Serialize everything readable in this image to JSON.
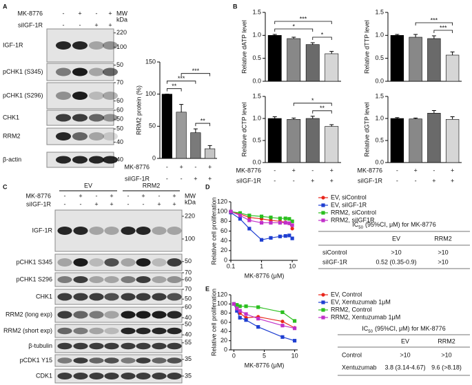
{
  "panel_letters": [
    "A",
    "B",
    "C",
    "D",
    "E"
  ],
  "blot_A": {
    "treatments": [
      {
        "name": "MK-8776",
        "signs": [
          "-",
          "+",
          "-",
          "+"
        ]
      },
      {
        "name": "siIGF-1R",
        "signs": [
          "-",
          "-",
          "+",
          "+"
        ]
      }
    ],
    "mw_label": [
      "MW",
      "kDa"
    ],
    "rows": [
      {
        "label": "IGF-1R",
        "markers": [
          220,
          100
        ]
      },
      {
        "label": "pCHK1 (S345)",
        "markers": [
          50
        ]
      },
      {
        "label": "pCHK1 (S296)",
        "markers": [
          70,
          60
        ]
      },
      {
        "label": "CHK1",
        "markers": [
          60,
          50
        ]
      },
      {
        "label": "RRM2",
        "markers": [
          50,
          40
        ]
      },
      {
        "label": "β-actin",
        "markers": [
          40
        ]
      }
    ]
  },
  "blot_C": {
    "groups": [
      "EV",
      "RRM2"
    ],
    "treatments": [
      {
        "name": "MK-8776",
        "signs": [
          "-",
          "+",
          "-",
          "+",
          "-",
          "+",
          "-",
          "+"
        ]
      },
      {
        "name": "siIGF-1R",
        "signs": [
          "-",
          "-",
          "+",
          "+",
          "-",
          "-",
          "+",
          "+"
        ]
      }
    ],
    "mw_label": [
      "MW",
      "kDa"
    ],
    "rows": [
      {
        "label": "IGF-1R",
        "markers": [
          220,
          100
        ]
      },
      {
        "label": "pCHK1 S345",
        "markers": [
          50
        ]
      },
      {
        "label": "pCHK1 S296",
        "markers": [
          70,
          60
        ]
      },
      {
        "label": "CHK1",
        "markers": [
          70,
          50
        ]
      },
      {
        "label": "RRM2 (long exp)",
        "markers": [
          60,
          40
        ]
      },
      {
        "label": "RRM2 (short exp)",
        "markers": [
          50,
          40
        ]
      },
      {
        "label": "β-tubulin",
        "markers": [
          55
        ]
      },
      {
        "label": "pCDK1 Y15",
        "markers": [
          35
        ]
      },
      {
        "label": "CDK1",
        "markers": [
          35
        ]
      }
    ]
  },
  "chart_data": [
    {
      "type": "bar",
      "ylabel": "RRM2 protein (%)",
      "values": [
        100,
        72,
        40,
        15
      ],
      "errors": [
        0,
        12,
        6,
        5
      ],
      "colors": [
        "#000000",
        "#9a9a9a",
        "#7a7a7a",
        "#c4c4c4"
      ],
      "ylim": [
        0,
        150
      ],
      "yticks": [
        0,
        50,
        100,
        150
      ],
      "significance": [
        {
          "groups": [
            0,
            2
          ],
          "label": "***"
        },
        {
          "groups": [
            0,
            1
          ],
          "label": "**"
        },
        {
          "groups": [
            1,
            3
          ],
          "label": "***"
        },
        {
          "groups": [
            2,
            3
          ],
          "label": "**"
        }
      ],
      "treatments": [
        {
          "name": "MK-8776",
          "signs": [
            "-",
            "+",
            "-",
            "+"
          ]
        },
        {
          "name": "siIGF-1R",
          "signs": [
            "-",
            "-",
            "+",
            "+"
          ]
        }
      ]
    },
    {
      "type": "bar",
      "ylabel": "Relative dATP level",
      "values": [
        1.0,
        0.93,
        0.8,
        0.6
      ],
      "errors": [
        0.02,
        0.03,
        0.04,
        0.05
      ],
      "colors": [
        "#000000",
        "#888888",
        "#6a6a6a",
        "#d6d6d6"
      ],
      "ylim": [
        0,
        1.5
      ],
      "yticks": [
        {
          "value": 0,
          "label": "0.0"
        },
        0.5,
        {
          "value": 1,
          "label": "1.0"
        },
        1.5
      ],
      "significance": [
        {
          "groups": [
            0,
            2
          ],
          "label": "*"
        },
        {
          "groups": [
            0,
            3
          ],
          "label": "***"
        },
        {
          "groups": [
            2,
            3
          ],
          "label": "*"
        }
      ]
    },
    {
      "type": "bar",
      "ylabel": "Relative dTTP level",
      "values": [
        1.0,
        0.96,
        0.93,
        0.57
      ],
      "errors": [
        0.02,
        0.06,
        0.06,
        0.07
      ],
      "colors": [
        "#000000",
        "#888888",
        "#6a6a6a",
        "#d6d6d6"
      ],
      "ylim": [
        0,
        1.5
      ],
      "yticks": [
        {
          "value": 0,
          "label": "0.0"
        },
        0.5,
        {
          "value": 1,
          "label": "1.0"
        },
        1.5
      ],
      "significance": [
        {
          "groups": [
            2,
            3
          ],
          "label": "***"
        },
        {
          "groups": [
            1,
            3
          ],
          "label": "***"
        }
      ]
    },
    {
      "type": "bar",
      "ylabel": "Relative dCTP level",
      "values": [
        1.0,
        0.98,
        1.0,
        0.82
      ],
      "errors": [
        0.04,
        0.03,
        0.05,
        0.04
      ],
      "colors": [
        "#000000",
        "#888888",
        "#6a6a6a",
        "#d6d6d6"
      ],
      "ylim": [
        0,
        1.5
      ],
      "yticks": [
        {
          "value": 0,
          "label": "0.0"
        },
        0.5,
        {
          "value": 1,
          "label": "1.0"
        },
        1.5
      ],
      "significance": [
        {
          "groups": [
            2,
            3
          ],
          "label": "**"
        },
        {
          "groups": [
            1,
            3
          ],
          "label": "*"
        }
      ],
      "treatments": [
        {
          "name": "MK-8776",
          "signs": [
            "-",
            "+",
            "-",
            "+"
          ]
        },
        {
          "name": "siIGF-1R",
          "signs": [
            "-",
            "-",
            "+",
            "+"
          ]
        }
      ]
    },
    {
      "type": "bar",
      "ylabel": "Relative dGTP level",
      "values": [
        1.0,
        0.99,
        1.12,
        0.98
      ],
      "errors": [
        0.02,
        0.02,
        0.06,
        0.06
      ],
      "colors": [
        "#000000",
        "#888888",
        "#6a6a6a",
        "#d6d6d6"
      ],
      "ylim": [
        0,
        1.5
      ],
      "yticks": [
        {
          "value": 0,
          "label": "0.0"
        },
        0.5,
        {
          "value": 1,
          "label": "1.0"
        },
        1.5
      ],
      "treatments": [
        {
          "name": "MK-8776",
          "signs": [
            "-",
            "+",
            "-",
            "+"
          ]
        },
        {
          "name": "siIGF-1R",
          "signs": [
            "-",
            "-",
            "+",
            "+"
          ]
        }
      ]
    },
    {
      "type": "line",
      "xlabel": "MK-8776 (μM)",
      "ylabel": "Relative cell proliferation",
      "xscale": "log",
      "x": [
        0.1,
        0.2,
        0.4,
        1,
        2,
        4,
        6,
        8,
        10
      ],
      "xlim": [
        0.1,
        15
      ],
      "xticks": [
        0.1,
        1,
        10
      ],
      "ylim": [
        0,
        120
      ],
      "yticks": [
        0,
        20,
        40,
        60,
        80,
        100,
        120
      ],
      "series": [
        {
          "name": "EV, siControl",
          "color": "#e8261c",
          "marker": "circle",
          "values": [
            100,
            95,
            88,
            85,
            82,
            80,
            78,
            76,
            65
          ]
        },
        {
          "name": "EV, siIGF-1R",
          "color": "#1f3fd1",
          "marker": "square",
          "values": [
            98,
            85,
            65,
            42,
            46,
            49,
            50,
            51,
            45
          ]
        },
        {
          "name": "RRM2, siControl",
          "color": "#2bbf1f",
          "marker": "square",
          "values": [
            100,
            97,
            92,
            90,
            88,
            86,
            86,
            85,
            80
          ]
        },
        {
          "name": "RRM2, siIGF1R",
          "color": "#c130c9",
          "marker": "square",
          "values": [
            100,
            92,
            82,
            77,
            77,
            77,
            77,
            76,
            72
          ]
        }
      ]
    },
    {
      "type": "line",
      "xlabel": "MK-8776 (μM)",
      "ylabel": "Relative cell proliferation",
      "xscale": "linear",
      "x": [
        0,
        0.5,
        1,
        2,
        4,
        8,
        10
      ],
      "xlim": [
        -0.5,
        10.5
      ],
      "xticks": [
        0,
        5,
        10
      ],
      "ylim": [
        0,
        120
      ],
      "yticks": [
        0,
        20,
        40,
        60,
        80,
        100,
        120
      ],
      "series": [
        {
          "name": "EV, Control",
          "color": "#e8261c",
          "marker": "circle",
          "values": [
            100,
            88,
            80,
            70,
            72,
            62,
            48
          ]
        },
        {
          "name": "EV, Xentuzumab 1μM",
          "color": "#1f3fd1",
          "marker": "square",
          "values": [
            100,
            85,
            70,
            65,
            50,
            28,
            20
          ]
        },
        {
          "name": "RRM2, Control",
          "color": "#2bbf1f",
          "marker": "square",
          "values": [
            100,
            98,
            95,
            95,
            93,
            82,
            63
          ]
        },
        {
          "name": "RRM2, Xentuzumab 1μM",
          "color": "#c130c9",
          "marker": "square",
          "values": [
            100,
            90,
            85,
            78,
            68,
            53,
            47
          ]
        }
      ]
    }
  ],
  "table_D": {
    "title": {
      "prefix": "IC",
      "subscript": "50",
      "rest": "(95%CI, μM) for MK-8776"
    },
    "columns": [
      "EV",
      "RRM2"
    ],
    "rows": [
      {
        "label": "siControl",
        "cells": [
          ">10",
          ">10"
        ]
      },
      {
        "label": "siIGF-1R",
        "cells": [
          "0.52 (0.35-0.9)",
          ">10"
        ]
      }
    ]
  },
  "table_E": {
    "title": {
      "prefix": "IC",
      "subscript": "50",
      "rest": "(95%CI, μM) for MK-8776"
    },
    "columns": [
      "EV",
      "RRM2"
    ],
    "rows": [
      {
        "label": "Control",
        "cells": [
          ">10",
          ">10"
        ]
      },
      {
        "label": "Xentuzumab",
        "cells": [
          "3.8 (3.14-4.67)",
          "9.6 (>8.18)"
        ]
      }
    ]
  }
}
